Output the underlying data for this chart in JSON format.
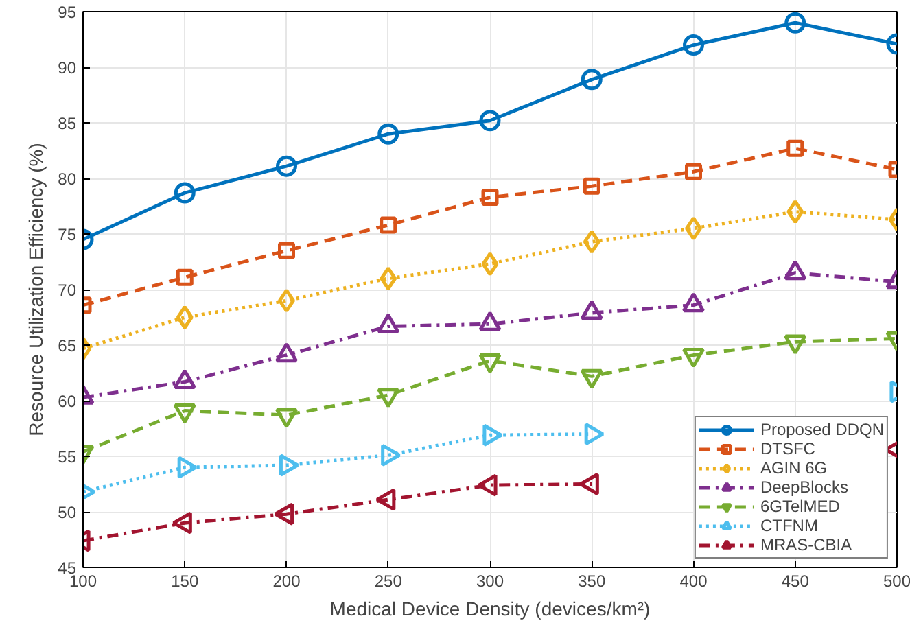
{
  "chart_data": {
    "type": "line",
    "xlabel": "Medical Device Density (devices/km²)",
    "ylabel": "Resource Utilization Efficiency (%)",
    "x": [
      100,
      150,
      200,
      250,
      300,
      350,
      400,
      450,
      500
    ],
    "xlim": [
      100,
      500
    ],
    "xticks": [
      100,
      150,
      200,
      250,
      300,
      350,
      400,
      450,
      500
    ],
    "ylim": [
      45,
      95
    ],
    "yticks": [
      45,
      50,
      55,
      60,
      65,
      70,
      75,
      80,
      85,
      90,
      95
    ],
    "grid": true,
    "legend": "bottom right",
    "series": [
      {
        "name": "Proposed DDQN",
        "color": "#0072bd",
        "marker": "circle",
        "line_style": "solid",
        "values": [
          74.5,
          78.7,
          81.1,
          84.0,
          85.2,
          88.9,
          92.0,
          94.0,
          92.1
        ]
      },
      {
        "name": "DTSFC",
        "color": "#d95319",
        "marker": "square",
        "line_style": "dashed",
        "values": [
          68.6,
          71.1,
          73.5,
          75.8,
          78.3,
          79.3,
          80.6,
          82.7,
          80.8
        ]
      },
      {
        "name": "AGIN 6G",
        "color": "#edb120",
        "marker": "diamond",
        "line_style": "dotted",
        "values": [
          64.7,
          67.5,
          69.0,
          71.0,
          72.3,
          74.3,
          75.5,
          77.0,
          76.3
        ]
      },
      {
        "name": "DeepBlocks",
        "color": "#7e2f8e",
        "marker": "triangle",
        "line_style": "dashdot",
        "values": [
          60.3,
          61.7,
          64.1,
          66.7,
          66.9,
          67.9,
          68.6,
          71.5,
          70.7
        ]
      },
      {
        "name": "6GTelMED",
        "color": "#77ac30",
        "marker": "triangle-down",
        "line_style": "dashed",
        "values": [
          55.4,
          59.1,
          58.7,
          60.5,
          63.6,
          62.2,
          64.1,
          65.3,
          65.6
        ]
      },
      {
        "name": "CTFNM",
        "color": "#4dbeee",
        "marker": "triangle-right",
        "line_style": "dotted",
        "values": [
          51.8,
          54.0,
          54.2,
          55.1,
          56.9,
          57.0,
          null,
          null,
          60.8
        ]
      },
      {
        "name": "MRAS-CBIA",
        "color": "#a2142f",
        "marker": "triangle-left",
        "line_style": "dashdot",
        "values": [
          47.4,
          49.0,
          49.8,
          51.1,
          52.4,
          52.5,
          null,
          null,
          55.6
        ]
      }
    ]
  }
}
